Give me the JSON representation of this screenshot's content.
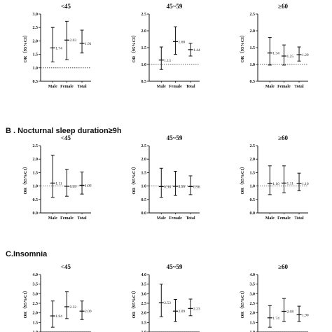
{
  "sections": [
    {
      "label": ""
    },
    {
      "label": "B . Nocturnal sleep duration≥9h"
    },
    {
      "label": "C.Insomnia"
    }
  ],
  "chart_data": [
    {
      "type": "errorbar",
      "section": 0,
      "title": "<45",
      "ylabel": "OR（95%CI）",
      "ylim": [
        0.5,
        3.0
      ],
      "yticks": [
        "0.5",
        "1.0",
        "1.5",
        "2.0",
        "2.5",
        "3.0"
      ],
      "reference_line": 1.0,
      "categories": [
        "Male",
        "Female",
        "Total"
      ],
      "values": [
        1.74,
        2.03,
        1.91
      ],
      "lower": [
        1.22,
        1.3,
        1.55
      ],
      "upper": [
        2.5,
        2.73,
        2.4
      ],
      "labels": [
        "1.74",
        "2.03",
        "1.91"
      ]
    },
    {
      "type": "errorbar",
      "section": 0,
      "title": "45~59",
      "ylabel": "OR（95%CI）",
      "ylim": [
        0.5,
        2.5
      ],
      "yticks": [
        "0.5",
        "1.0",
        "1.5",
        "2.0",
        "2.5"
      ],
      "reference_line": 1.0,
      "categories": [
        "Male",
        "Female",
        "Total"
      ],
      "values": [
        1.13,
        1.68,
        1.44
      ],
      "lower": [
        0.85,
        1.3,
        1.25
      ],
      "upper": [
        1.52,
        2.12,
        1.63
      ],
      "labels": [
        "1.13",
        "1.68",
        "1.44"
      ]
    },
    {
      "type": "errorbar",
      "section": 0,
      "title": "≥60",
      "ylabel": "OR（95%CI）",
      "ylim": [
        0.5,
        2.5
      ],
      "yticks": [
        "0.5",
        "1.0",
        "1.5",
        "2.0",
        "2.5"
      ],
      "reference_line": 1.0,
      "categories": [
        "Male",
        "Female",
        "Total"
      ],
      "values": [
        1.34,
        1.25,
        1.29
      ],
      "lower": [
        0.98,
        0.98,
        1.1
      ],
      "upper": [
        1.8,
        1.58,
        1.52
      ],
      "labels": [
        "1.34",
        "1.25",
        "1.29"
      ]
    },
    {
      "type": "errorbar",
      "section": 1,
      "title": "<45",
      "ylabel": "OR（95%CI）",
      "ylim": [
        0.0,
        2.5
      ],
      "yticks": [
        "0.0",
        "0.5",
        "1.0",
        "1.5",
        "2.0",
        "2.5"
      ],
      "reference_line": 1.0,
      "categories": [
        "Male",
        "Female",
        "Total"
      ],
      "values": [
        1.11,
        0.99,
        1.03
      ],
      "lower": [
        0.58,
        0.62,
        0.7
      ],
      "upper": [
        2.15,
        1.62,
        1.52
      ],
      "labels": [
        "1.11",
        "0.99",
        "1.03"
      ]
    },
    {
      "type": "errorbar",
      "section": 1,
      "title": "45~59",
      "ylabel": "OR（95%CI）",
      "ylim": [
        0.0,
        2.5
      ],
      "yticks": [
        "0.0",
        "0.5",
        "1.0",
        "1.5",
        "2.0",
        "2.5"
      ],
      "reference_line": 1.0,
      "categories": [
        "Male",
        "Female",
        "Total"
      ],
      "values": [
        0.98,
        0.99,
        0.98
      ],
      "lower": [
        0.58,
        0.65,
        0.68
      ],
      "upper": [
        1.66,
        1.55,
        1.38
      ],
      "labels": [
        "0.98",
        "0.99",
        "0.98"
      ]
    },
    {
      "type": "errorbar",
      "section": 1,
      "title": "≥60",
      "ylabel": "OR（95%CI）",
      "ylim": [
        0.0,
        2.5
      ],
      "yticks": [
        "0.0",
        "0.5",
        "1.0",
        "1.5",
        "2.0",
        "2.5"
      ],
      "reference_line": 1.0,
      "categories": [
        "Male",
        "Female",
        "Total"
      ],
      "values": [
        1.1,
        1.11,
        1.1
      ],
      "lower": [
        0.68,
        0.75,
        0.82
      ],
      "upper": [
        1.75,
        1.75,
        1.48
      ],
      "labels": [
        "1.10",
        "1.11",
        "1.10"
      ]
    },
    {
      "type": "errorbar",
      "section": 2,
      "title": "<45",
      "ylabel": "OR（95%CI）",
      "ylim": [
        1.0,
        4.0
      ],
      "yticks": [
        "1.0",
        "1.5",
        "2.0",
        "2.5",
        "3.0",
        "3.5",
        "4.0"
      ],
      "reference_line": 1.0,
      "categories": [
        "Male",
        "Female",
        "Total"
      ],
      "values": [
        1.84,
        2.32,
        2.09
      ],
      "lower": [
        1.25,
        1.7,
        1.65
      ],
      "upper": [
        2.62,
        3.1,
        2.62
      ],
      "labels": [
        "1.84",
        "2.32",
        "2.09"
      ]
    },
    {
      "type": "errorbar",
      "section": 2,
      "title": "45~59",
      "ylabel": "OR（95%CI）",
      "ylim": [
        1.0,
        4.0
      ],
      "yticks": [
        "1.0",
        "1.5",
        "2.0",
        "2.5",
        "3.0",
        "3.5",
        "4.0"
      ],
      "reference_line": 1.0,
      "categories": [
        "Male",
        "Female",
        "Total"
      ],
      "values": [
        2.53,
        2.09,
        2.23
      ],
      "lower": [
        1.8,
        1.55,
        1.85
      ],
      "upper": [
        3.5,
        2.7,
        2.72
      ],
      "labels": [
        "2.53",
        "2.09",
        "2.23"
      ]
    },
    {
      "type": "errorbar",
      "section": 2,
      "title": "≥60",
      "ylabel": "OR（95%CI）",
      "ylim": [
        1.0,
        4.0
      ],
      "yticks": [
        "1.0",
        "1.5",
        "2.0",
        "2.5",
        "3.0",
        "3.5",
        "4.0"
      ],
      "reference_line": 1.0,
      "categories": [
        "Male",
        "Female",
        "Total"
      ],
      "values": [
        1.74,
        2.08,
        1.9
      ],
      "lower": [
        1.25,
        1.55,
        1.55
      ],
      "upper": [
        2.38,
        2.75,
        2.35
      ],
      "labels": [
        "1.74",
        "2.08",
        "1.90"
      ]
    }
  ]
}
